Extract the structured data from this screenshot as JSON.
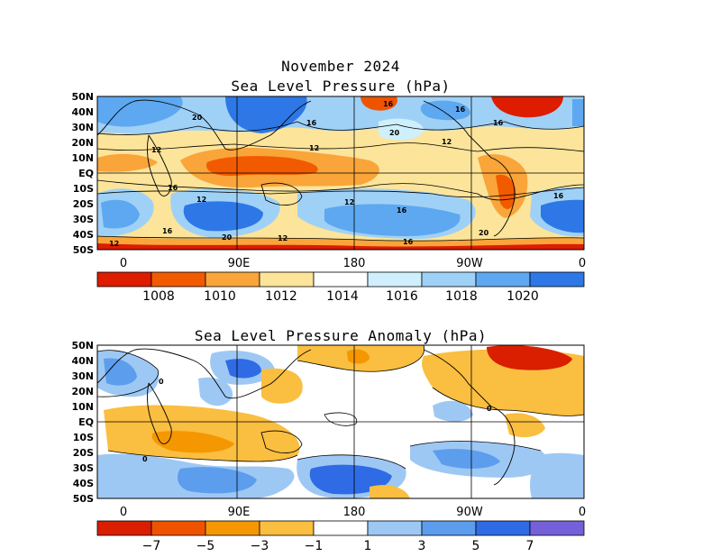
{
  "page": {
    "title_line1": "November 2024",
    "title_line2": "Sea Level Pressure (hPa)",
    "title_anomaly": "Sea Level Pressure Anomaly (hPa)"
  },
  "map": {
    "lat_labels": [
      "50N",
      "40N",
      "30N",
      "20N",
      "10N",
      "EQ",
      "10S",
      "20S",
      "30S",
      "40S",
      "50S"
    ],
    "lon_labels": [
      "0",
      "90E",
      "180",
      "90W",
      "0"
    ]
  },
  "pressure": {
    "colorbar": {
      "colors": [
        "#dd1c00",
        "#f25a00",
        "#f9a53a",
        "#fce49a",
        "#ffffff",
        "#cfeffd",
        "#9fd1f7",
        "#5da8f0",
        "#2d78e6"
      ],
      "labels": [
        "1008",
        "1010",
        "1012",
        "1014",
        "1016",
        "1018",
        "1020"
      ]
    },
    "contour_labels": [
      "20",
      "16",
      "12",
      "16",
      "20",
      "16",
      "16",
      "12",
      "12",
      "16",
      "16",
      "12",
      "20",
      "12",
      "16",
      "12",
      "16",
      "20",
      "12",
      "16"
    ]
  },
  "anomaly": {
    "colorbar": {
      "colors": [
        "#d91f00",
        "#ef5300",
        "#f59700",
        "#fabe40",
        "#ffffff",
        "#9ec8f4",
        "#5c9ded",
        "#2f6be5",
        "#7560d9"
      ],
      "labels": [
        "−7",
        "−5",
        "−3",
        "−1",
        "1",
        "3",
        "5",
        "7"
      ]
    },
    "contour_labels": [
      "0",
      "0",
      "0"
    ]
  }
}
